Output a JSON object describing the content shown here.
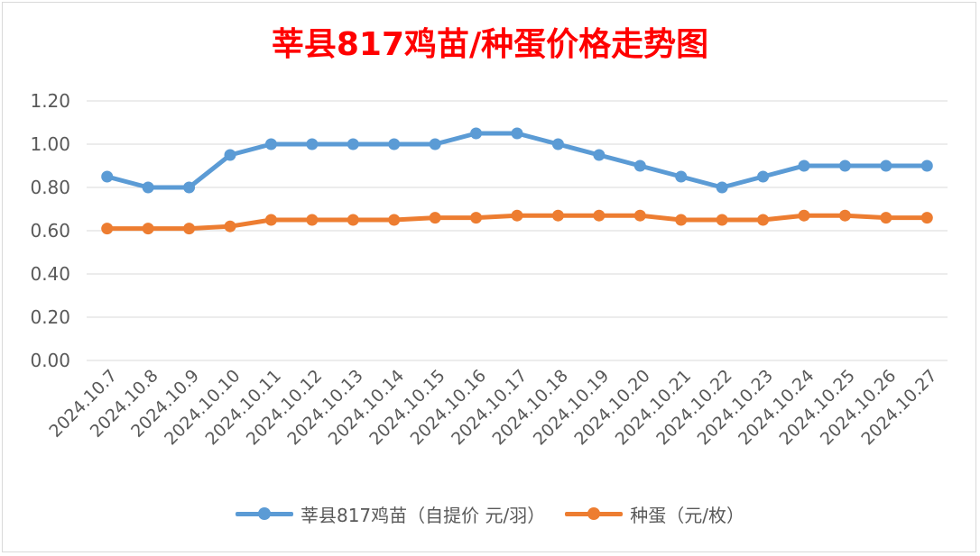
{
  "chart_data": {
    "type": "line",
    "title": "莘县817鸡苗/种蛋价格走势图",
    "categories": [
      "2024.10.7",
      "2024.10.8",
      "2024.10.9",
      "2024.10.10",
      "2024.10.11",
      "2024.10.12",
      "2024.10.13",
      "2024.10.14",
      "2024.10.15",
      "2024.10.16",
      "2024.10.17",
      "2024.10.18",
      "2024.10.19",
      "2024.10.20",
      "2024.10.21",
      "2024.10.22",
      "2024.10.23",
      "2024.10.24",
      "2024.10.25",
      "2024.10.26",
      "2024.10.27"
    ],
    "series": [
      {
        "name": "莘县817鸡苗（自提价 元/羽）",
        "color": "#5b9bd5",
        "values": [
          0.85,
          0.8,
          0.8,
          0.95,
          1.0,
          1.0,
          1.0,
          1.0,
          1.0,
          1.05,
          1.05,
          1.0,
          0.95,
          0.9,
          0.85,
          0.8,
          0.85,
          0.9,
          0.9,
          0.9,
          0.9
        ]
      },
      {
        "name": "种蛋（元/枚）",
        "color": "#ed7d31",
        "values": [
          0.61,
          0.61,
          0.61,
          0.62,
          0.65,
          0.65,
          0.65,
          0.65,
          0.66,
          0.66,
          0.67,
          0.67,
          0.67,
          0.67,
          0.65,
          0.65,
          0.65,
          0.67,
          0.67,
          0.66,
          0.66
        ]
      }
    ],
    "yticks": [
      "0.00",
      "0.20",
      "0.40",
      "0.60",
      "0.80",
      "1.00",
      "1.20"
    ],
    "ylim": [
      0,
      1.2
    ],
    "grid": true,
    "legend_position": "bottom"
  }
}
